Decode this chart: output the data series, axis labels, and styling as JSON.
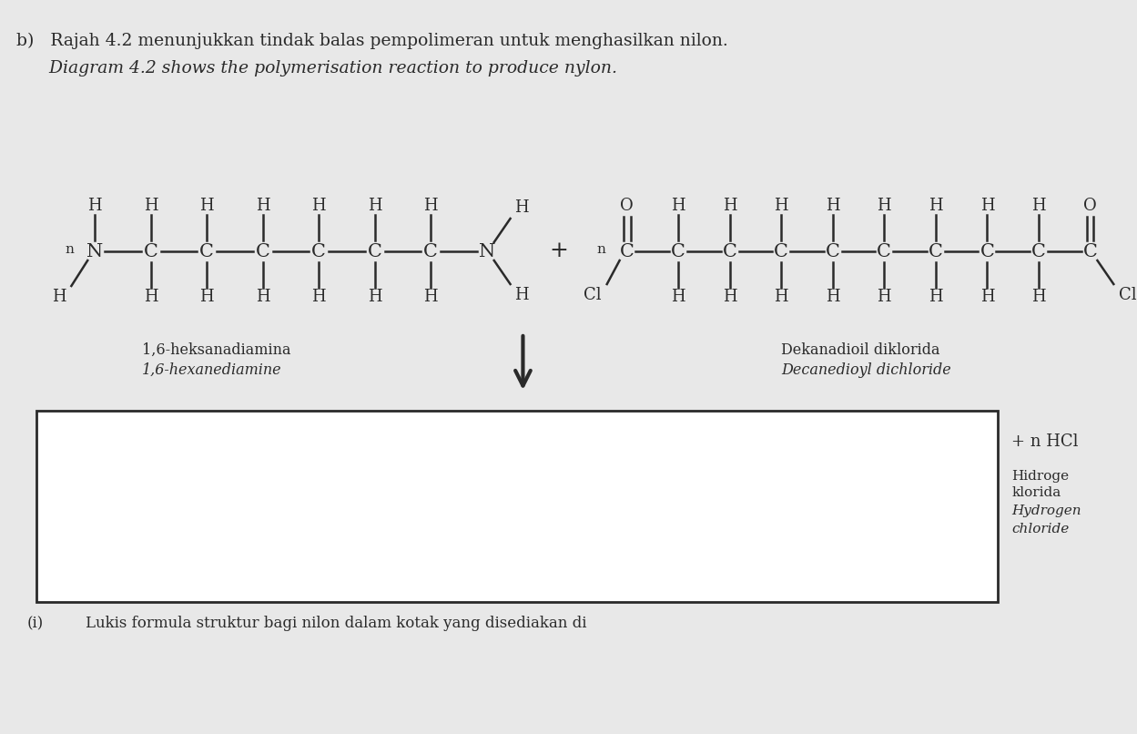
{
  "bg_color": "#e8e8e8",
  "title_line1": "b)   Rajah 4.2 menunjukkan tindak balas pempolimeran untuk menghasilkan nilon.",
  "title_line2": "      Diagram 4.2 shows the polymerisation reaction to produce nylon.",
  "label1_line1": "1,6-heksanadiamina",
  "label1_line2": "1,6-hexanediamine",
  "label2_line1": "Dekanadioil diklorida",
  "label2_line2": "Decanedioyl dichloride",
  "side_label1": "+ n HCl",
  "side_label2_1": "Hidroge",
  "side_label2_2": "klorida",
  "side_label2_3": "Hydrogen",
  "side_label2_4": "chloride",
  "bottom_text1": "(i)",
  "bottom_text2": "Lukis formula struktur bagi nilon dalam kotak yang disediakan di",
  "box_color": "#ffffff",
  "text_color": "#2a2a2a"
}
